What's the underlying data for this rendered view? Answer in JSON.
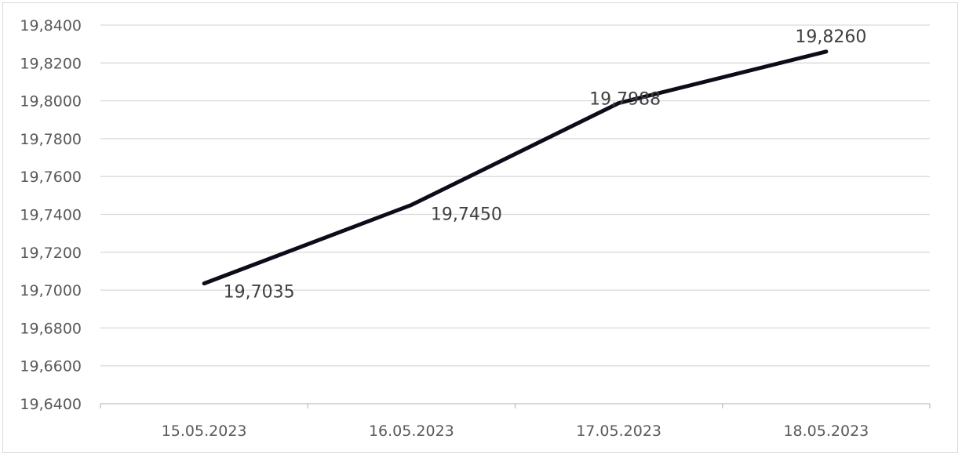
{
  "chart_data": {
    "type": "line",
    "categories": [
      "15.05.2023",
      "16.05.2023",
      "17.05.2023",
      "18.05.2023"
    ],
    "series": [
      {
        "values": [
          19.7035,
          19.745,
          19.7988,
          19.826
        ]
      }
    ],
    "data_labels": [
      "19,7035",
      "19,7450",
      "19,7988",
      "19,8260"
    ],
    "y_ticks": [
      "19,6400",
      "19,6600",
      "19,6800",
      "19,7000",
      "19,7200",
      "19,7400",
      "19,7600",
      "19,7800",
      "19,8000",
      "19,8200",
      "19,8400"
    ],
    "ylim": [
      19.64,
      19.84
    ],
    "ytick_step": 0.02,
    "grid": true,
    "legend": "none",
    "colors": {
      "line": "#0d0d1a",
      "grid": "#d9d9d9",
      "axis": "#bfbfbf",
      "tick_text": "#595959",
      "label_text": "#404040"
    }
  }
}
